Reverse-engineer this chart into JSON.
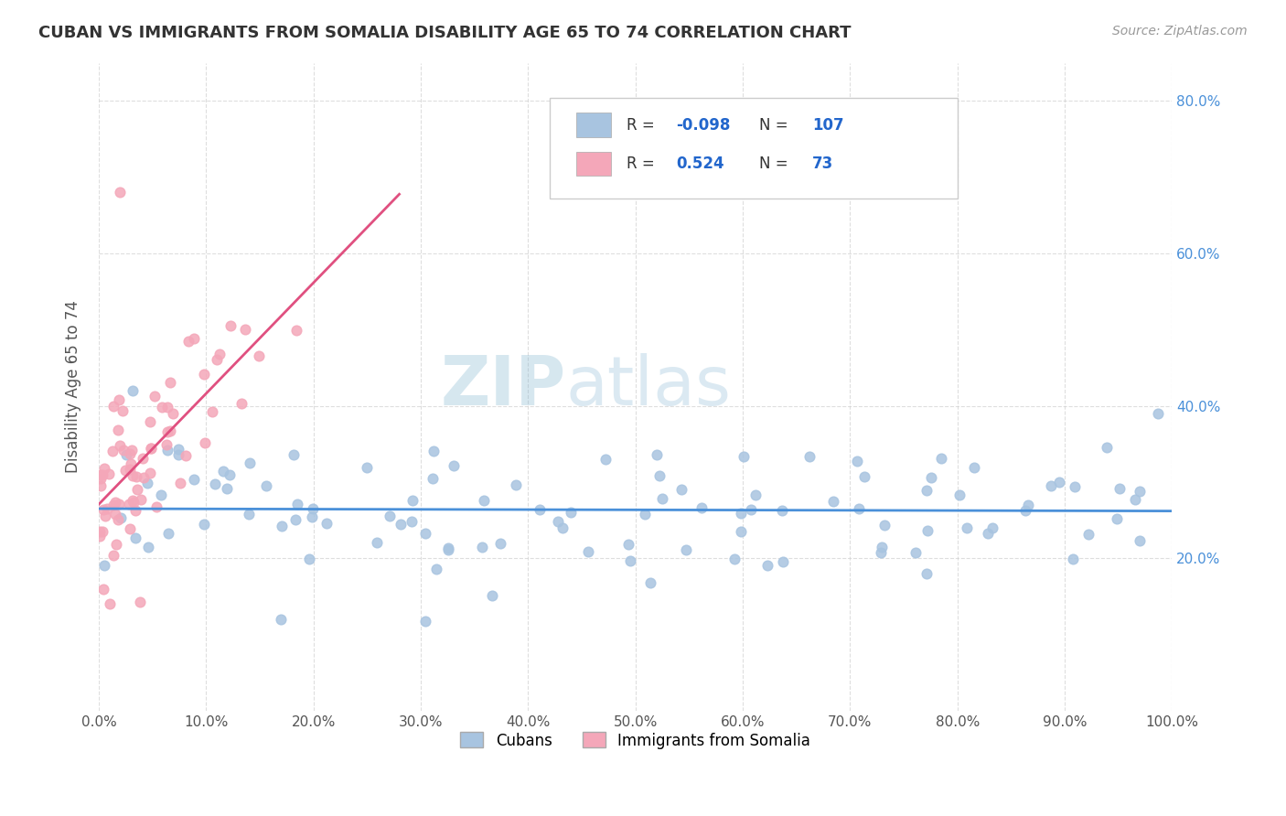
{
  "title": "CUBAN VS IMMIGRANTS FROM SOMALIA DISABILITY AGE 65 TO 74 CORRELATION CHART",
  "source": "Source: ZipAtlas.com",
  "ylabel": "Disability Age 65 to 74",
  "legend_cubans": "Cubans",
  "legend_somalia": "Immigrants from Somalia",
  "cuban_R": -0.098,
  "cuban_N": 107,
  "somalia_R": 0.524,
  "somalia_N": 73,
  "cuban_color": "#a8c4e0",
  "somalia_color": "#f4a7b9",
  "cuban_line_color": "#4a90d9",
  "somalia_line_color": "#e05080",
  "background_color": "#ffffff",
  "grid_color": "#d0d0d0",
  "xlim": [
    0.0,
    1.0
  ],
  "ylim": [
    0.0,
    0.85
  ]
}
